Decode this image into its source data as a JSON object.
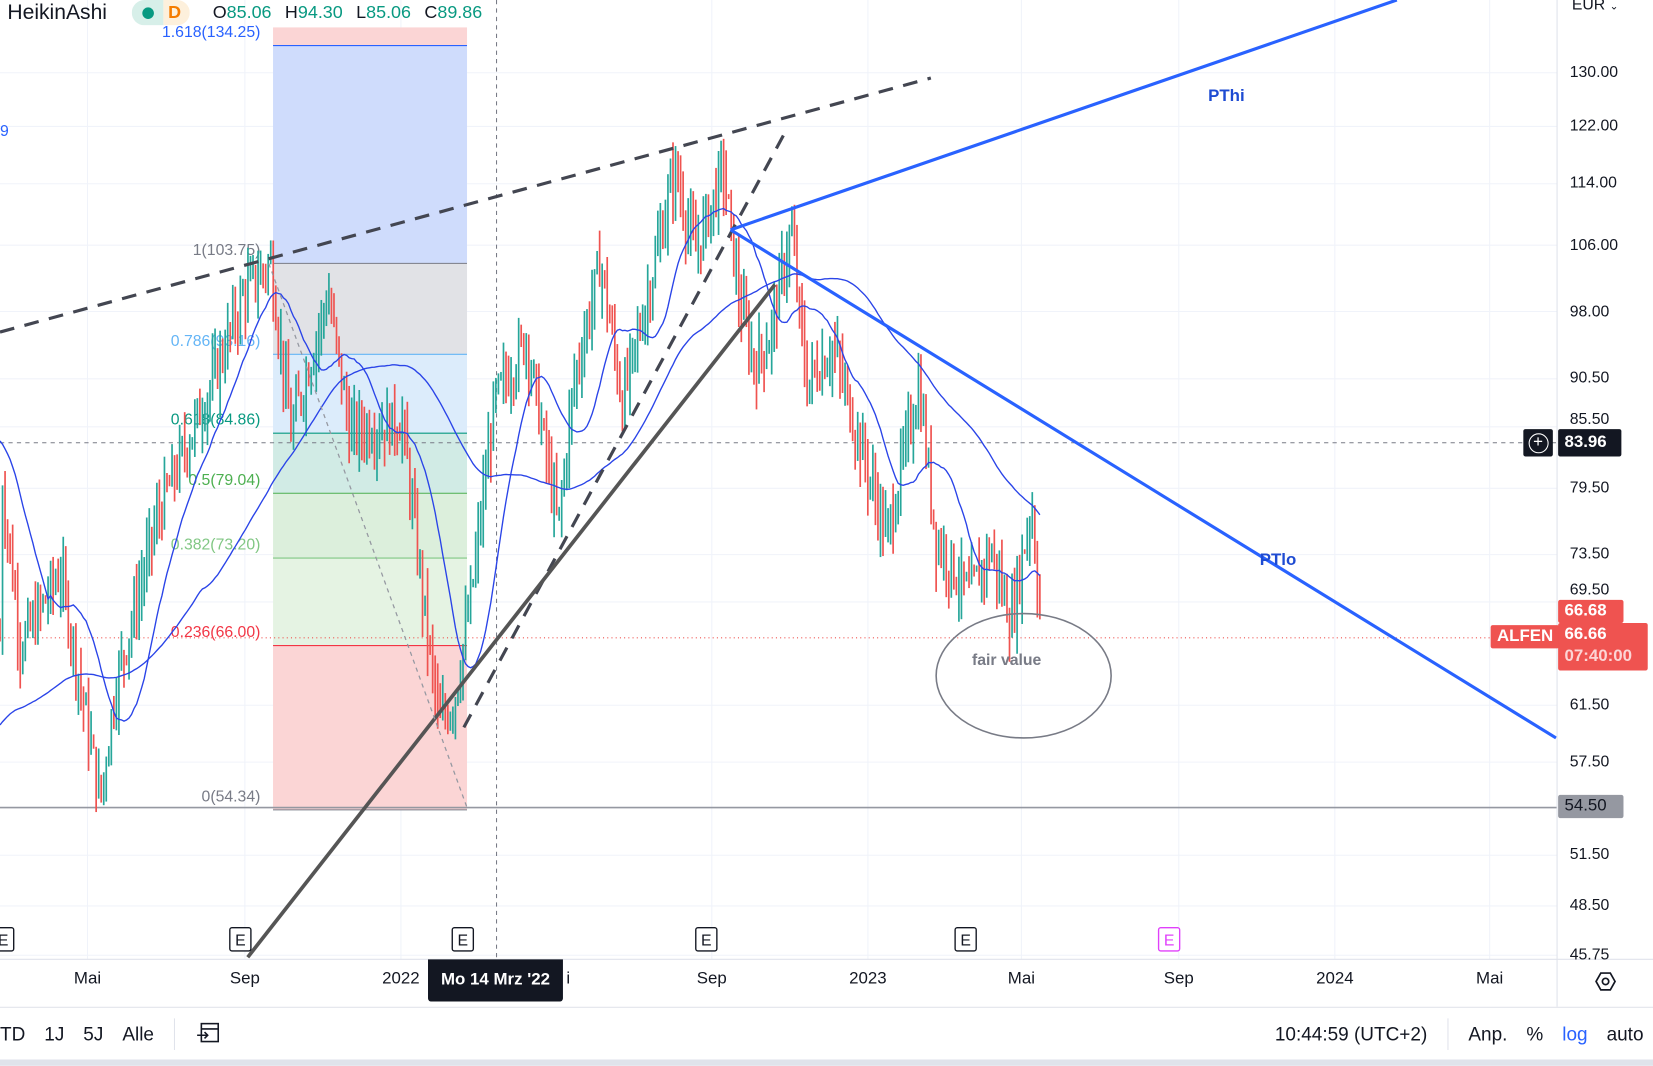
{
  "header": {
    "indicator": "HeikinAshi",
    "interval": "D",
    "open_label": "O",
    "open": "85.06",
    "high_label": "H",
    "high": "94.30",
    "low_label": "L",
    "low": "85.06",
    "close_label": "C",
    "close": "89.86",
    "left_value": "9"
  },
  "price_axis": {
    "currency": "EUR",
    "ticks": [
      "130.00",
      "122.00",
      "114.00",
      "106.00",
      "98.00",
      "90.50",
      "85.50",
      "79.50",
      "73.50",
      "69.50",
      "61.50",
      "57.50",
      "51.50",
      "48.50",
      "45.75"
    ],
    "crosshair_price": "83.96",
    "last_high": "66.68",
    "last_price": "66.66",
    "countdown": "07:40:00",
    "symbol": "ALFEN",
    "level_price": "54.50",
    "scale": "log"
  },
  "time_axis": {
    "ticks": [
      {
        "label": "Mai",
        "date": "2021-05-01"
      },
      {
        "label": "Sep",
        "date": "2021-09-01"
      },
      {
        "label": "2022",
        "date": "2022-01-01"
      },
      {
        "label": "Sep",
        "date": "2022-09-01"
      },
      {
        "label": "2023",
        "date": "2023-01-01"
      },
      {
        "label": "Mai",
        "date": "2023-05-01"
      },
      {
        "label": "Sep",
        "date": "2023-09-01"
      },
      {
        "label": "2024",
        "date": "2024-01-01"
      },
      {
        "label": "Mai",
        "date": "2024-05-01"
      }
    ],
    "crosshair_date": "Mo 14 Mrz '22",
    "hidden_fragment": "i"
  },
  "fibonacci": [
    {
      "label": "1.618(134.25)",
      "ratio": 1.618,
      "price": 134.25,
      "color": "#2962ff"
    },
    {
      "label": "1(103.75)",
      "ratio": 1,
      "price": 103.75,
      "color": "#787b86"
    },
    {
      "label": "0.786(93.16)",
      "ratio": 0.786,
      "price": 93.16,
      "color": "#64b5f6"
    },
    {
      "label": "0.618(84.86)",
      "ratio": 0.618,
      "price": 84.86,
      "color": "#089981"
    },
    {
      "label": "0.5(79.04)",
      "ratio": 0.5,
      "price": 79.04,
      "color": "#4caf50"
    },
    {
      "label": "0.382(73.20)",
      "ratio": 0.382,
      "price": 73.2,
      "color": "#81c784"
    },
    {
      "label": "0.236(66.00)",
      "ratio": 0.236,
      "price": 66.0,
      "color": "#f23645"
    },
    {
      "label": "0(54.34)",
      "ratio": 0,
      "price": 54.34,
      "color": "#787b86"
    }
  ],
  "annotations": {
    "pthi": "PThi",
    "ptlo": "PTlo",
    "fair_value": "fair value",
    "earnings_marker": "E"
  },
  "bottom": {
    "ranges": [
      "TD",
      "1J",
      "5J",
      "Alle"
    ],
    "clock": "10:44:59 (UTC+2)",
    "adjust": "Anp.",
    "percent": "%",
    "log": "log",
    "auto": "auto"
  },
  "colors": {
    "up": "#26a69a",
    "down": "#ef5350",
    "ma": "#2a44e8",
    "trend": "#2962ff",
    "alert": "#ef5350"
  },
  "chart_data": {
    "type": "bar",
    "style": "heikin-ashi",
    "scale": "log",
    "ylim": [
      45.75,
      137
    ],
    "close_path": [
      [
        "2021-02-23",
        80
      ],
      [
        "2021-03-10",
        66
      ],
      [
        "2021-04-10",
        72
      ],
      [
        "2021-05-11",
        55
      ],
      [
        "2021-05-23",
        63
      ],
      [
        "2021-06-25",
        77
      ],
      [
        "2021-08-06",
        90
      ],
      [
        "2021-08-31",
        100
      ],
      [
        "2021-09-21",
        104
      ],
      [
        "2021-10-07",
        85
      ],
      [
        "2021-11-05",
        100
      ],
      [
        "2021-11-22",
        85
      ],
      [
        "2022-01-02",
        86
      ],
      [
        "2022-01-18",
        70
      ],
      [
        "2022-01-31",
        60
      ],
      [
        "2022-02-12",
        62
      ],
      [
        "2022-02-25",
        70
      ],
      [
        "2022-03-15",
        88
      ],
      [
        "2022-04-09",
        95
      ],
      [
        "2022-05-04",
        76
      ],
      [
        "2022-05-16",
        90
      ],
      [
        "2022-06-06",
        104
      ],
      [
        "2022-06-23",
        88
      ],
      [
        "2022-07-13",
        100
      ],
      [
        "2022-08-03",
        116
      ],
      [
        "2022-08-19",
        105
      ],
      [
        "2022-09-10",
        116
      ],
      [
        "2022-09-22",
        100
      ],
      [
        "2022-10-04",
        92
      ],
      [
        "2022-10-16",
        95
      ],
      [
        "2022-11-02",
        108
      ],
      [
        "2022-11-14",
        90
      ],
      [
        "2022-12-05",
        94
      ],
      [
        "2022-12-21",
        86
      ],
      [
        "2023-01-16",
        75
      ],
      [
        "2023-01-28",
        82
      ],
      [
        "2023-02-10",
        90
      ],
      [
        "2023-02-23",
        75
      ],
      [
        "2023-03-21",
        70
      ],
      [
        "2023-04-07",
        74
      ],
      [
        "2023-04-23",
        68
      ],
      [
        "2023-05-09",
        78
      ],
      [
        "2023-05-17",
        66.66
      ]
    ]
  }
}
